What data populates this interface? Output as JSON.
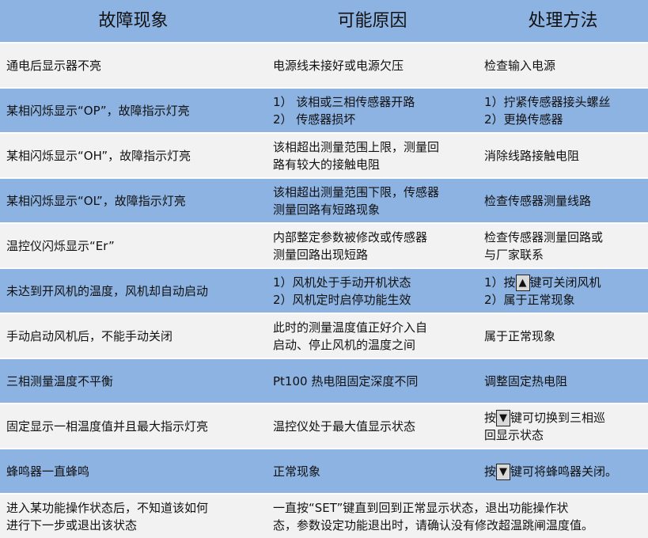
{
  "headers": [
    "故障现象",
    "可能原因",
    "处理方法"
  ],
  "rows": [
    {
      "symptom": "通电后显示器不亮",
      "cause": [
        "电源线未接好或电源欠压"
      ],
      "fix": [
        "检查输入电源"
      ]
    },
    {
      "symptom": "某相闪烁显示“OP”，故障指示灯亮",
      "cause": [
        "1）  该相或三相传感器开路",
        "2）  传感器损坏"
      ],
      "fix": [
        "1）拧紧传感器接头螺丝",
        "2）更换传感器"
      ]
    },
    {
      "symptom": "某相闪烁显示“OH”，故障指示灯亮",
      "cause": [
        "该相超出测量范围上限，测量回",
        "路有较大的接触电阻"
      ],
      "fix": [
        "消除线路接触电阻"
      ]
    },
    {
      "symptom": "某相闪烁显示“OL”，故障指示灯亮",
      "cause": [
        "该相超出测量范围下限，传感器",
        "测量回路有短路现象"
      ],
      "fix": [
        "检查传感器测量线路"
      ]
    },
    {
      "symptom": "温控仪闪烁显示“Er”",
      "cause": [
        "内部整定参数被修改或传感器",
        "测量回路出现短路"
      ],
      "fix": [
        "检查传感器测量回路或",
        "与厂家联系"
      ]
    },
    {
      "symptom": "未达到开风机的温度，风机却自动启动",
      "cause": [
        "1）风机处于手动开机状态",
        "2）风机定时启停功能生效"
      ],
      "fix_key": {
        "pre": "1）按",
        "key": "▲",
        "post": "键可关闭风机"
      },
      "fix": [
        "2）属于正常现象"
      ]
    },
    {
      "symptom": "手动启动风机后，不能手动关闭",
      "cause": [
        "此时的测量温度值正好介入自",
        "启动、停止风机的温度之间"
      ],
      "fix": [
        "属于正常现象"
      ]
    },
    {
      "symptom": "三相测量温度不平衡",
      "cause": [
        "Pt100 热电阻固定深度不同"
      ],
      "fix": [
        "调整固定热电阻"
      ]
    },
    {
      "symptom": "固定显示一相温度值并且最大指示灯亮",
      "cause": [
        "温控仪处于最大值显示状态"
      ],
      "fix_key": {
        "pre": "按",
        "key": "▼",
        "post": "键可切换到三相巡"
      },
      "fix": [
        "回显示状态"
      ]
    },
    {
      "symptom": "蜂鸣器一直蜂鸣",
      "cause": [
        "正常现象"
      ],
      "fix_key": {
        "pre": "按",
        "key": "▼",
        "post": "键可将蜂鸣器关闭。"
      },
      "fix": []
    },
    {
      "symptom": [
        "进入某功能操作状态后，不知道该如何",
        "进行下一步或退出该状态"
      ],
      "merged": [
        "一直按“SET”键直到回到正常显示状态，退出功能操作状",
        "态，参数设定功能退出时，请确认没有修改超温跳闸温度值。"
      ]
    }
  ],
  "colors": {
    "header": "#8db3e2",
    "band_blue": "#8db3e2",
    "band_light": "#f2f2f2"
  }
}
